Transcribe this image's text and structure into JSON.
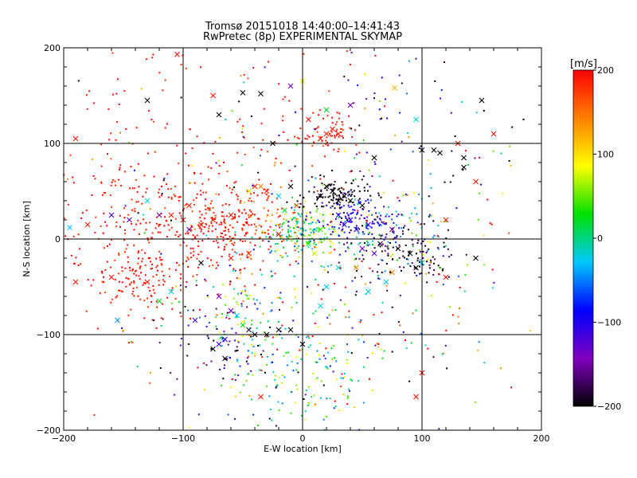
{
  "chart_data": {
    "type": "scatter",
    "title": "Tromsø 20151018 14:40:00–14:41:43",
    "subtitle": "RwPretec (8p) EXPERIMENTAL SKYMAP",
    "xlabel": "E-W location [km]",
    "ylabel": "N-S location [km]",
    "xlim": [
      -200,
      200
    ],
    "ylim": [
      -200,
      200
    ],
    "x_ticks": [
      "-200",
      "-100",
      "0",
      "100",
      "200"
    ],
    "y_ticks": [
      "-200",
      "-100",
      "0",
      "100",
      "200"
    ],
    "grid": true,
    "colorbar": {
      "label": "[m/s]",
      "range": [
        -200,
        200
      ],
      "ticks": [
        "-200",
        "-100",
        "0",
        "100",
        "200"
      ],
      "colormap": [
        "#000000",
        "#8000c0",
        "#0000ff",
        "#00c8ff",
        "#00e000",
        "#ffff00",
        "#ff8000",
        "#ff0000"
      ]
    },
    "markers": [
      "dot",
      "cross"
    ],
    "points": [
      {
        "x": -190,
        "y": 105,
        "v": 190,
        "m": "cross"
      },
      {
        "x": -105,
        "y": 193,
        "v": 195,
        "m": "cross"
      },
      {
        "x": -130,
        "y": 145,
        "v": -200,
        "m": "cross"
      },
      {
        "x": -35,
        "y": 152,
        "v": -200,
        "m": "cross"
      },
      {
        "x": -50,
        "y": 153,
        "v": -200,
        "m": "cross"
      },
      {
        "x": -75,
        "y": 150,
        "v": 190,
        "m": "cross"
      },
      {
        "x": -10,
        "y": 160,
        "v": -150,
        "m": "cross"
      },
      {
        "x": 0,
        "y": 165,
        "v": 80,
        "m": "cross"
      },
      {
        "x": 40,
        "y": 140,
        "v": -130,
        "m": "cross"
      },
      {
        "x": 77,
        "y": 158,
        "v": 120,
        "m": "cross"
      },
      {
        "x": 95,
        "y": 125,
        "v": -20,
        "m": "cross"
      },
      {
        "x": 150,
        "y": 145,
        "v": -200,
        "m": "cross"
      },
      {
        "x": 135,
        "y": 85,
        "v": -200,
        "m": "cross"
      },
      {
        "x": 135,
        "y": 75,
        "v": -200,
        "m": "cross"
      },
      {
        "x": 100,
        "y": 93,
        "v": -200,
        "m": "cross"
      },
      {
        "x": 110,
        "y": 93,
        "v": -200,
        "m": "cross"
      },
      {
        "x": 115,
        "y": 90,
        "v": -200,
        "m": "cross"
      },
      {
        "x": 60,
        "y": 85,
        "v": -200,
        "m": "cross"
      },
      {
        "x": 145,
        "y": 60,
        "v": 190,
        "m": "cross"
      },
      {
        "x": 185,
        "y": 125,
        "v": -200,
        "m": "dot"
      },
      {
        "x": -180,
        "y": 15,
        "v": 190,
        "m": "cross"
      },
      {
        "x": -195,
        "y": 12,
        "v": -30,
        "m": "cross"
      },
      {
        "x": -190,
        "y": -45,
        "v": 190,
        "m": "cross"
      },
      {
        "x": -160,
        "y": -40,
        "v": 190,
        "m": "cross"
      },
      {
        "x": -130,
        "y": -45,
        "v": 190,
        "m": "cross"
      },
      {
        "x": -120,
        "y": -65,
        "v": 20,
        "m": "cross"
      },
      {
        "x": -155,
        "y": -85,
        "v": -40,
        "m": "cross"
      },
      {
        "x": -110,
        "y": -55,
        "v": -20,
        "m": "cross"
      },
      {
        "x": -90,
        "y": -85,
        "v": -120,
        "m": "cross"
      },
      {
        "x": -70,
        "y": -60,
        "v": -140,
        "m": "cross"
      },
      {
        "x": -60,
        "y": -75,
        "v": -130,
        "m": "cross"
      },
      {
        "x": -55,
        "y": -80,
        "v": -30,
        "m": "cross"
      },
      {
        "x": -50,
        "y": -90,
        "v": 30,
        "m": "cross"
      },
      {
        "x": -45,
        "y": -95,
        "v": -180,
        "m": "cross"
      },
      {
        "x": -40,
        "y": -100,
        "v": -200,
        "m": "cross"
      },
      {
        "x": -30,
        "y": -100,
        "v": -200,
        "m": "cross"
      },
      {
        "x": -20,
        "y": -95,
        "v": -200,
        "m": "cross"
      },
      {
        "x": -10,
        "y": -95,
        "v": -200,
        "m": "cross"
      },
      {
        "x": 0,
        "y": -110,
        "v": -200,
        "m": "cross"
      },
      {
        "x": -65,
        "y": -105,
        "v": -100,
        "m": "cross"
      },
      {
        "x": -70,
        "y": -110,
        "v": -110,
        "m": "cross"
      },
      {
        "x": -75,
        "y": -115,
        "v": -200,
        "m": "cross"
      },
      {
        "x": -65,
        "y": -125,
        "v": -200,
        "m": "cross"
      },
      {
        "x": -35,
        "y": -165,
        "v": 190,
        "m": "cross"
      },
      {
        "x": 100,
        "y": -140,
        "v": 190,
        "m": "cross"
      },
      {
        "x": 95,
        "y": -165,
        "v": 190,
        "m": "cross"
      },
      {
        "x": 15,
        "y": -70,
        "v": -20,
        "m": "cross"
      },
      {
        "x": 20,
        "y": -50,
        "v": -30,
        "m": "cross"
      },
      {
        "x": 70,
        "y": -45,
        "v": -30,
        "m": "cross"
      },
      {
        "x": 120,
        "y": -40,
        "v": 190,
        "m": "cross"
      },
      {
        "x": 145,
        "y": -20,
        "v": -200,
        "m": "cross"
      },
      {
        "x": 100,
        "y": -25,
        "v": -20,
        "m": "cross"
      },
      {
        "x": 75,
        "y": -35,
        "v": 140,
        "m": "cross"
      },
      {
        "x": 60,
        "y": -15,
        "v": -120,
        "m": "cross"
      },
      {
        "x": 25,
        "y": 50,
        "v": -200,
        "m": "cross"
      },
      {
        "x": 35,
        "y": 45,
        "v": -200,
        "m": "cross"
      },
      {
        "x": 40,
        "y": 40,
        "v": -200,
        "m": "cross"
      },
      {
        "x": 30,
        "y": 40,
        "v": -200,
        "m": "cross"
      },
      {
        "x": 15,
        "y": 45,
        "v": -200,
        "m": "cross"
      },
      {
        "x": 50,
        "y": 35,
        "v": -200,
        "m": "cross"
      },
      {
        "x": 20,
        "y": 55,
        "v": -200,
        "m": "cross"
      },
      {
        "x": -10,
        "y": 55,
        "v": -200,
        "m": "cross"
      },
      {
        "x": 40,
        "y": 20,
        "v": -100,
        "m": "cross"
      },
      {
        "x": 35,
        "y": 15,
        "v": -110,
        "m": "cross"
      },
      {
        "x": 45,
        "y": 10,
        "v": -100,
        "m": "cross"
      },
      {
        "x": 30,
        "y": 25,
        "v": -100,
        "m": "cross"
      },
      {
        "x": 55,
        "y": 15,
        "v": -110,
        "m": "cross"
      },
      {
        "x": 75,
        "y": 10,
        "v": -150,
        "m": "cross"
      },
      {
        "x": 80,
        "y": -10,
        "v": -200,
        "m": "cross"
      },
      {
        "x": 65,
        "y": -5,
        "v": -190,
        "m": "cross"
      },
      {
        "x": 90,
        "y": -15,
        "v": -200,
        "m": "cross"
      },
      {
        "x": 95,
        "y": -30,
        "v": -200,
        "m": "cross"
      },
      {
        "x": 50,
        "y": -10,
        "v": -130,
        "m": "cross"
      },
      {
        "x": -40,
        "y": 55,
        "v": 190,
        "m": "cross"
      },
      {
        "x": -30,
        "y": 50,
        "v": 190,
        "m": "cross"
      },
      {
        "x": -35,
        "y": 55,
        "v": 140,
        "m": "cross"
      },
      {
        "x": -45,
        "y": 50,
        "v": 80,
        "m": "cross"
      },
      {
        "x": -20,
        "y": 45,
        "v": -30,
        "m": "cross"
      },
      {
        "x": -15,
        "y": 30,
        "v": 20,
        "m": "cross"
      },
      {
        "x": -5,
        "y": 35,
        "v": 160,
        "m": "cross"
      },
      {
        "x": -60,
        "y": 25,
        "v": 190,
        "m": "cross"
      },
      {
        "x": -75,
        "y": 20,
        "v": 190,
        "m": "cross"
      },
      {
        "x": -85,
        "y": 15,
        "v": 190,
        "m": "cross"
      },
      {
        "x": -95,
        "y": 10,
        "v": -150,
        "m": "cross"
      },
      {
        "x": -100,
        "y": 20,
        "v": 190,
        "m": "cross"
      },
      {
        "x": -110,
        "y": 25,
        "v": 190,
        "m": "cross"
      },
      {
        "x": -120,
        "y": 25,
        "v": -150,
        "m": "cross"
      },
      {
        "x": -145,
        "y": 20,
        "v": -150,
        "m": "cross"
      },
      {
        "x": -160,
        "y": 25,
        "v": -110,
        "m": "cross"
      },
      {
        "x": -130,
        "y": 40,
        "v": -20,
        "m": "cross"
      },
      {
        "x": -95,
        "y": 35,
        "v": 190,
        "m": "cross"
      },
      {
        "x": -85,
        "y": -25,
        "v": -200,
        "m": "cross"
      },
      {
        "x": -60,
        "y": -20,
        "v": 190,
        "m": "cross"
      },
      {
        "x": -45,
        "y": -15,
        "v": 190,
        "m": "cross"
      },
      {
        "x": -20,
        "y": 5,
        "v": 190,
        "m": "cross"
      },
      {
        "x": 10,
        "y": -15,
        "v": 80,
        "m": "cross"
      },
      {
        "x": 5,
        "y": -5,
        "v": 20,
        "m": "cross"
      },
      {
        "x": 15,
        "y": 10,
        "v": 40,
        "m": "cross"
      },
      {
        "x": 20,
        "y": 110,
        "v": 190,
        "m": "cross"
      },
      {
        "x": 25,
        "y": 115,
        "v": 190,
        "m": "cross"
      },
      {
        "x": 15,
        "y": 105,
        "v": 190,
        "m": "cross"
      },
      {
        "x": 30,
        "y": 110,
        "v": 190,
        "m": "cross"
      },
      {
        "x": -25,
        "y": 100,
        "v": -200,
        "m": "cross"
      },
      {
        "x": -70,
        "y": 130,
        "v": -200,
        "m": "cross"
      },
      {
        "x": 5,
        "y": 125,
        "v": 190,
        "m": "cross"
      },
      {
        "x": 20,
        "y": 135,
        "v": 20,
        "m": "cross"
      },
      {
        "x": 130,
        "y": 100,
        "v": 190,
        "m": "cross"
      },
      {
        "x": 120,
        "y": 20,
        "v": 190,
        "m": "cross"
      },
      {
        "x": 160,
        "y": 110,
        "v": 190,
        "m": "cross"
      },
      {
        "x": 45,
        "y": -30,
        "v": 140,
        "m": "cross"
      },
      {
        "x": 30,
        "y": -30,
        "v": -20,
        "m": "cross"
      },
      {
        "x": 55,
        "y": -55,
        "v": -20,
        "m": "cross"
      }
    ],
    "dot_clusters": [
      {
        "x": -130,
        "y": 10,
        "sx": 40,
        "sy": 45,
        "n": 260,
        "v": 190,
        "dv": 15
      },
      {
        "x": -140,
        "y": -40,
        "sx": 18,
        "sy": 14,
        "n": 90,
        "v": 190,
        "dv": 10
      },
      {
        "x": -70,
        "y": 15,
        "sx": 25,
        "sy": 25,
        "n": 170,
        "v": 190,
        "dv": 15
      },
      {
        "x": -150,
        "y": 130,
        "sx": 35,
        "sy": 45,
        "n": 50,
        "v": 190,
        "dv": 10
      },
      {
        "x": -40,
        "y": 20,
        "sx": 20,
        "sy": 25,
        "n": 90,
        "v": 175,
        "dv": 30
      },
      {
        "x": 0,
        "y": 5,
        "sx": 15,
        "sy": 14,
        "n": 170,
        "v": 30,
        "dv": 45
      },
      {
        "x": 30,
        "y": 45,
        "sx": 13,
        "sy": 9,
        "n": 110,
        "v": -195,
        "dv": 8
      },
      {
        "x": 45,
        "y": 20,
        "sx": 18,
        "sy": 10,
        "n": 110,
        "v": -105,
        "dv": 20
      },
      {
        "x": 85,
        "y": -15,
        "sx": 25,
        "sy": 18,
        "n": 130,
        "v": -185,
        "dv": 20
      },
      {
        "x": 70,
        "y": 10,
        "sx": 28,
        "sy": 25,
        "n": 90,
        "v": -30,
        "dv": 50
      },
      {
        "x": 20,
        "y": 110,
        "sx": 15,
        "sy": 12,
        "n": 60,
        "v": 190,
        "dv": 10
      },
      {
        "x": 80,
        "y": 120,
        "sx": 35,
        "sy": 40,
        "n": 50,
        "v": -110,
        "dv": 90
      },
      {
        "x": -50,
        "y": -85,
        "sx": 18,
        "sy": 25,
        "n": 100,
        "v": -5,
        "dv": 90
      },
      {
        "x": 0,
        "y": -150,
        "sx": 30,
        "sy": 30,
        "n": 110,
        "v": 10,
        "dv": 55
      },
      {
        "x": 20,
        "y": -100,
        "sx": 45,
        "sy": 35,
        "n": 90,
        "v": 10,
        "dv": 150
      },
      {
        "x": -80,
        "y": -110,
        "sx": 20,
        "sy": 25,
        "n": 50,
        "v": -160,
        "dv": 40
      },
      {
        "x": 0,
        "y": 0,
        "sx": 100,
        "sy": 100,
        "n": 230,
        "v": 40,
        "dv": 220
      },
      {
        "x": 120,
        "y": -20,
        "sx": 40,
        "sy": 60,
        "n": 60,
        "v": 90,
        "dv": 120
      },
      {
        "x": -20,
        "y": 130,
        "sx": 30,
        "sy": 40,
        "n": 45,
        "v": 190,
        "dv": 10
      }
    ]
  }
}
